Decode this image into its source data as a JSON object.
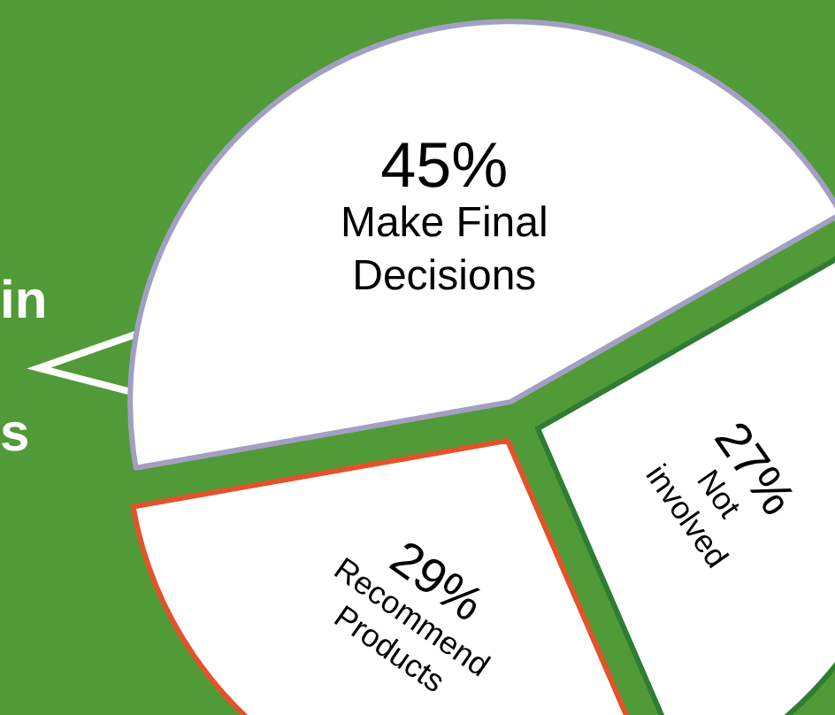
{
  "chart_data": {
    "type": "pie",
    "categories": [
      "Make Final Decisions",
      "Not involved",
      "Recommend Products"
    ],
    "values": [
      45,
      27,
      29
    ],
    "value_labels": [
      "45%",
      "27%",
      "29%"
    ],
    "colors": [
      "#a39fc4",
      "#2e7d32",
      "#e2532b"
    ],
    "annotations": [
      "in",
      "s"
    ]
  }
}
